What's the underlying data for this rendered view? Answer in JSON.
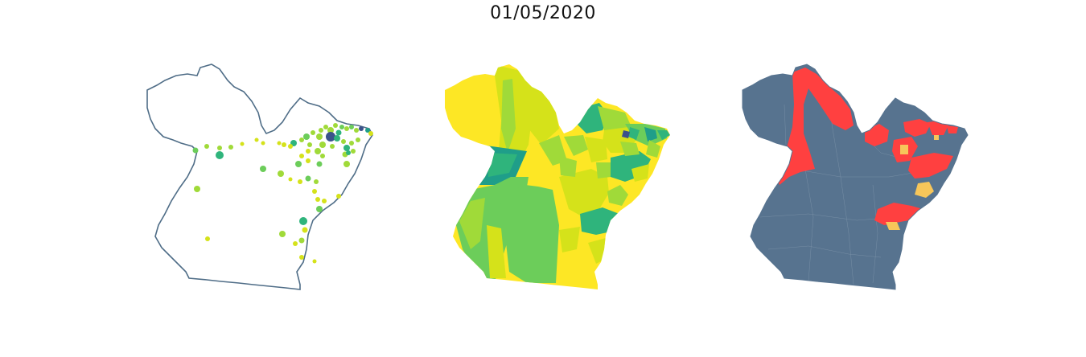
{
  "title": "01/05/2020",
  "colors": {
    "outline": "#4f6d87",
    "yellow": "#fde725",
    "yellow_green": "#d5e21a",
    "light_green": "#a0da39",
    "green": "#6ccd5a",
    "teal_green": "#2fb47c",
    "teal": "#1f9e89",
    "blue": "#3b528b",
    "slate": "#57738f",
    "red": "#ff4040",
    "orange": "#f7c65a",
    "water": "#ffffff"
  }
}
